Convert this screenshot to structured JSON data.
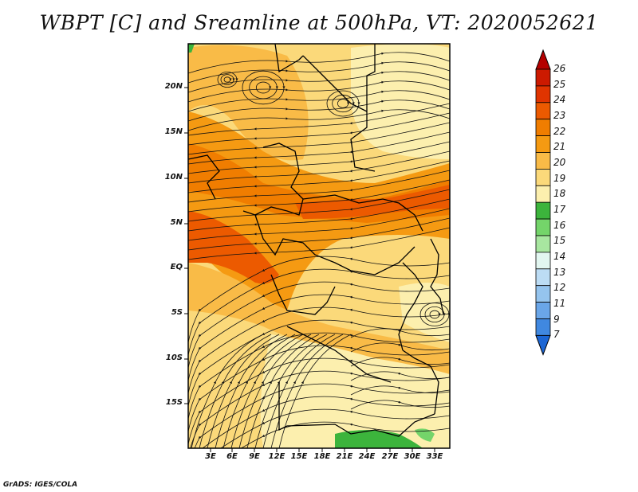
{
  "title": "WBPT [C] and Sreamline at 500hPa, VT: 2020052621",
  "footer": "GrADS: IGES/COLA",
  "lat_ticks": [
    "20N",
    "15N",
    "10N",
    "5N",
    "EQ",
    "5S",
    "10S",
    "15S"
  ],
  "lon_ticks": [
    "3E",
    "6E",
    "9E",
    "12E",
    "15E",
    "18E",
    "21E",
    "24E",
    "27E",
    "30E",
    "33E"
  ],
  "colorbar": {
    "labels": [
      "26",
      "25",
      "24",
      "23",
      "22",
      "21",
      "20",
      "19",
      "18",
      "17",
      "16",
      "15",
      "14",
      "13",
      "12",
      "11",
      "9",
      "7"
    ],
    "colors": [
      "#b40000",
      "#cc1a00",
      "#e03400",
      "#ec5a00",
      "#f07d00",
      "#f59a12",
      "#f9bb47",
      "#fbd97a",
      "#fcefae",
      "#3cb43c",
      "#74d46a",
      "#a8e6a0",
      "#e2f6f0",
      "#bcdcf4",
      "#95c4ee",
      "#6aa6e8",
      "#4088e0",
      "#1c66d4"
    ]
  },
  "map": {
    "fill_colors": {
      "light": "#fcefae",
      "pale": "#fbd97a",
      "orange_light": "#f9bb47",
      "orange": "#f59a12",
      "orange_deep": "#f07d00",
      "red_orange": "#ec5a00",
      "green": "#3cb43c",
      "green_light": "#74d46a"
    }
  }
}
